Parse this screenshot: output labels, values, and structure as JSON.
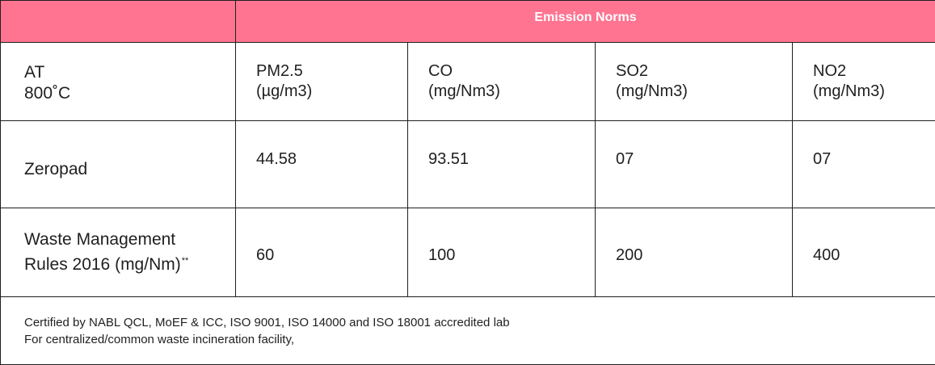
{
  "header": {
    "title": "Emission Norms"
  },
  "columns": [
    {
      "line1": "PM2.5",
      "line2": "(µg/m3)"
    },
    {
      "line1": "CO",
      "line2": "(mg/Nm3)"
    },
    {
      "line1": "SO2",
      "line2": "(mg/Nm3)"
    },
    {
      "line1": "NO2",
      "line2": "(mg/Nm3)"
    }
  ],
  "row_header": {
    "line1": "AT",
    "line2": "800˚C"
  },
  "rows": [
    {
      "label": "Zeropad",
      "values": [
        "44.58",
        "93.51",
        "07",
        "07"
      ]
    },
    {
      "label_line1": "Waste Management",
      "label_line2": "Rules 2016 (mg/Nm)",
      "label_mark": "**",
      "values": [
        "60",
        "100",
        "200",
        "400"
      ]
    }
  ],
  "footer": {
    "line1": "Certified by NABL QCL, MoEF & ICC, ISO 9001, ISO 14000 and ISO 18001 accredited lab",
    "line2": "For centralized/common waste incineration facility,"
  },
  "colors": {
    "header_bg": "#ff7491",
    "header_text": "#ffffff",
    "border": "#1f1f1f"
  }
}
